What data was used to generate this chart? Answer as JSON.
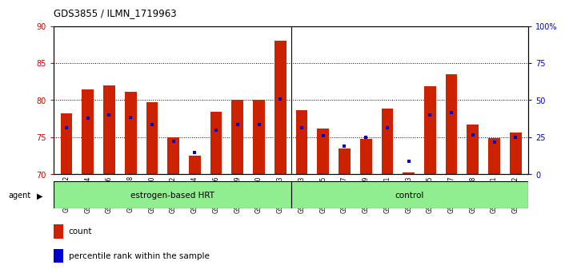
{
  "title": "GDS3855 / ILMN_1719963",
  "samples": [
    "GSM535582",
    "GSM535584",
    "GSM535586",
    "GSM535588",
    "GSM535590",
    "GSM535592",
    "GSM535594",
    "GSM535596",
    "GSM535599",
    "GSM535600",
    "GSM535603",
    "GSM535583",
    "GSM535585",
    "GSM535587",
    "GSM535589",
    "GSM535591",
    "GSM535593",
    "GSM535595",
    "GSM535597",
    "GSM535598",
    "GSM535601",
    "GSM535602"
  ],
  "red_values": [
    78.2,
    81.5,
    82.0,
    81.1,
    79.7,
    75.0,
    72.5,
    78.4,
    80.1,
    80.1,
    88.0,
    78.6,
    76.2,
    73.5,
    74.8,
    78.9,
    70.3,
    81.9,
    83.5,
    76.7,
    74.9,
    75.6
  ],
  "blue_values": [
    76.3,
    77.6,
    78.0,
    77.7,
    76.7,
    74.5,
    73.0,
    76.0,
    76.7,
    76.7,
    80.2,
    76.3,
    75.2,
    73.8,
    75.0,
    76.3,
    71.8,
    78.0,
    78.3,
    75.3,
    74.3,
    75.0
  ],
  "group1_label": "estrogen-based HRT",
  "group2_label": "control",
  "group1_count": 11,
  "group2_count": 11,
  "ylim_left": [
    70,
    90
  ],
  "yticks_left": [
    70,
    75,
    80,
    85,
    90
  ],
  "ylim_right": [
    0,
    100
  ],
  "yticks_right": [
    0,
    25,
    50,
    75,
    100
  ],
  "ylabel_left_color": "#cc0000",
  "ylabel_right_color": "#0000cc",
  "bar_color": "#cc2200",
  "dot_color": "#0000cc",
  "bg_color": "#ffffff",
  "group_bg": "#90ee90",
  "agent_label": "agent",
  "legend_count": "count",
  "legend_pct": "percentile rank within the sample"
}
